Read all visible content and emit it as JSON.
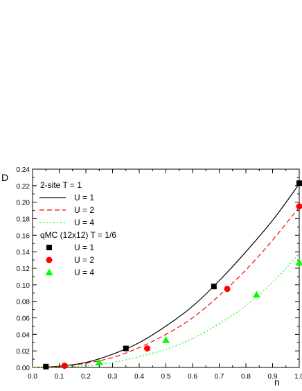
{
  "chart_data": {
    "type": "line",
    "ylabel": "D",
    "xlabel": "n",
    "xlim": [
      0.0,
      1.0
    ],
    "ylim": [
      0.0,
      0.24
    ],
    "x_ticks": [
      "0.0",
      "0.1",
      "0.2",
      "0.3",
      "0.4",
      "0.5",
      "0.6",
      "0.7",
      "0.8",
      "0.9",
      "1.0"
    ],
    "y_ticks": [
      "0.00",
      "0.02",
      "0.04",
      "0.06",
      "0.08",
      "0.10",
      "0.12",
      "0.14",
      "0.16",
      "0.18",
      "0.20",
      "0.22",
      "0.24"
    ],
    "grid": false,
    "legend_position": "top-left",
    "legend_groups": [
      {
        "title": "2-site T = 1",
        "series": [
          {
            "name": "U = 1",
            "style": "solid",
            "color": "#000000",
            "x": [
              0.0,
              0.1,
              0.2,
              0.3,
              0.4,
              0.5,
              0.6,
              0.7,
              0.8,
              0.9,
              1.0
            ],
            "y": [
              0.0,
              0.0015,
              0.006,
              0.016,
              0.03,
              0.05,
              0.074,
              0.105,
              0.14,
              0.178,
              0.222
            ]
          },
          {
            "name": "U = 2",
            "style": "dashed",
            "color": "#ff0000",
            "x": [
              0.0,
              0.1,
              0.2,
              0.3,
              0.4,
              0.5,
              0.6,
              0.7,
              0.8,
              0.9,
              1.0
            ],
            "y": [
              0.0,
              0.001,
              0.005,
              0.012,
              0.024,
              0.04,
              0.06,
              0.087,
              0.118,
              0.154,
              0.194
            ]
          },
          {
            "name": "U = 4",
            "style": "dotted",
            "color": "#00ff00",
            "x": [
              0.0,
              0.1,
              0.2,
              0.3,
              0.4,
              0.5,
              0.6,
              0.7,
              0.8,
              0.9,
              1.0
            ],
            "y": [
              0.0,
              0.0005,
              0.002,
              0.006,
              0.013,
              0.022,
              0.035,
              0.053,
              0.075,
              0.103,
              0.138
            ]
          }
        ]
      },
      {
        "title": "qMC (12x12) T = 1/6",
        "series": [
          {
            "name": "U = 1",
            "marker": "square",
            "color": "#000000",
            "x": [
              0.05,
              0.35,
              0.68,
              1.0
            ],
            "y": [
              0.001,
              0.023,
              0.098,
              0.223
            ]
          },
          {
            "name": "U = 2",
            "marker": "circle",
            "color": "#ff0000",
            "x": [
              0.12,
              0.43,
              0.73,
              1.0
            ],
            "y": [
              0.002,
              0.023,
              0.095,
              0.195
            ]
          },
          {
            "name": "U = 4",
            "marker": "triangle",
            "color": "#00ff00",
            "x": [
              0.25,
              0.5,
              0.84,
              1.0
            ],
            "y": [
              0.006,
              0.033,
              0.088,
              0.127
            ]
          }
        ]
      }
    ]
  }
}
